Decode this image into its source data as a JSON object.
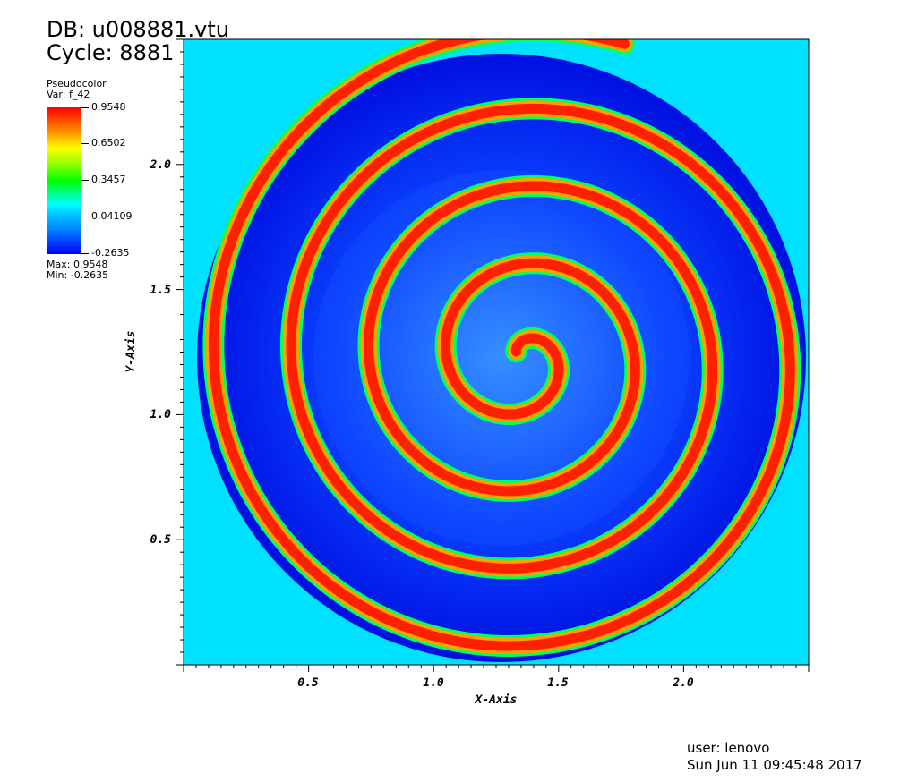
{
  "header": {
    "db_label": "DB: u008881.vtu",
    "cycle_label": "Cycle: 8881"
  },
  "legend": {
    "title": "Pseudocolor",
    "variable": "Var: f_42",
    "ticks": [
      "0.9548",
      "0.6502",
      "0.3457",
      "0.04109",
      "-0.2635"
    ],
    "max_label": "Max:  0.9548",
    "min_label": "Min:  -0.2635",
    "colors": [
      "#ff0000",
      "#ffff00",
      "#00ff00",
      "#00ffff",
      "#0000ff"
    ]
  },
  "plot": {
    "x_axis_title": "X-Axis",
    "y_axis_title": "Y-Axis",
    "x_ticks": [
      "0.5",
      "1.0",
      "1.5",
      "2.0"
    ],
    "y_ticks": [
      "0.5",
      "1.0",
      "1.5",
      "2.0"
    ],
    "x_range": [
      0,
      2.5
    ],
    "y_range": [
      0,
      2.5
    ],
    "background_color": "#00e0ff",
    "spiral_color": "#ff2000",
    "trough_color": "#0010ff"
  },
  "footer": {
    "user_label": "user: lenovo",
    "date_label": "Sun Jun 11 09:45:48 2017"
  }
}
